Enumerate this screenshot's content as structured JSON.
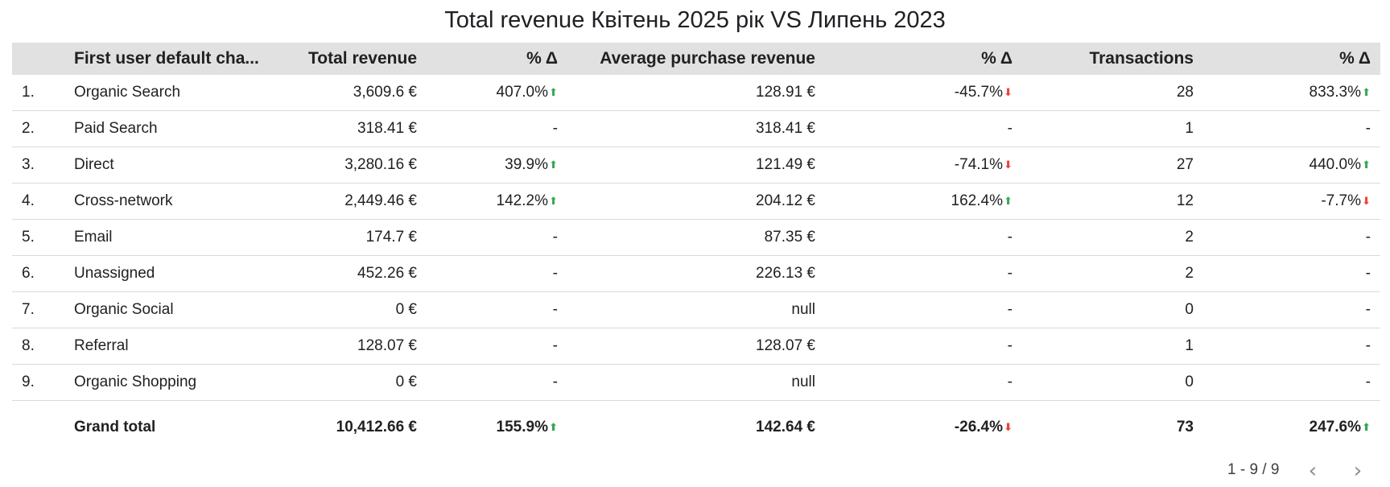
{
  "title": "Total revenue Квітень 2025 рік VS Липень 2023",
  "columns": {
    "index": "",
    "channel": "First user default cha...",
    "total_revenue": "Total revenue",
    "delta1": "% Δ",
    "avg_purchase": "Average purchase revenue",
    "delta2": "% Δ",
    "transactions": "Transactions",
    "delta3": "% Δ"
  },
  "rows": [
    {
      "idx": "1.",
      "channel": "Organic Search",
      "total_revenue": "3,609.6 €",
      "delta1": "407.0%",
      "delta1_dir": "up",
      "avg_purchase": "128.91 €",
      "delta2": "-45.7%",
      "delta2_dir": "down",
      "transactions": "28",
      "delta3": "833.3%",
      "delta3_dir": "up"
    },
    {
      "idx": "2.",
      "channel": "Paid Search",
      "total_revenue": "318.41 €",
      "delta1": "-",
      "delta1_dir": "",
      "avg_purchase": "318.41 €",
      "delta2": "-",
      "delta2_dir": "",
      "transactions": "1",
      "delta3": "-",
      "delta3_dir": ""
    },
    {
      "idx": "3.",
      "channel": "Direct",
      "total_revenue": "3,280.16 €",
      "delta1": "39.9%",
      "delta1_dir": "up",
      "avg_purchase": "121.49 €",
      "delta2": "-74.1%",
      "delta2_dir": "down",
      "transactions": "27",
      "delta3": "440.0%",
      "delta3_dir": "up"
    },
    {
      "idx": "4.",
      "channel": "Cross-network",
      "total_revenue": "2,449.46 €",
      "delta1": "142.2%",
      "delta1_dir": "up",
      "avg_purchase": "204.12 €",
      "delta2": "162.4%",
      "delta2_dir": "up",
      "transactions": "12",
      "delta3": "-7.7%",
      "delta3_dir": "down"
    },
    {
      "idx": "5.",
      "channel": "Email",
      "total_revenue": "174.7 €",
      "delta1": "-",
      "delta1_dir": "",
      "avg_purchase": "87.35 €",
      "delta2": "-",
      "delta2_dir": "",
      "transactions": "2",
      "delta3": "-",
      "delta3_dir": ""
    },
    {
      "idx": "6.",
      "channel": "Unassigned",
      "total_revenue": "452.26 €",
      "delta1": "-",
      "delta1_dir": "",
      "avg_purchase": "226.13 €",
      "delta2": "-",
      "delta2_dir": "",
      "transactions": "2",
      "delta3": "-",
      "delta3_dir": ""
    },
    {
      "idx": "7.",
      "channel": "Organic Social",
      "total_revenue": "0 €",
      "delta1": "-",
      "delta1_dir": "",
      "avg_purchase": "null",
      "delta2": "-",
      "delta2_dir": "",
      "transactions": "0",
      "delta3": "-",
      "delta3_dir": ""
    },
    {
      "idx": "8.",
      "channel": "Referral",
      "total_revenue": "128.07 €",
      "delta1": "-",
      "delta1_dir": "",
      "avg_purchase": "128.07 €",
      "delta2": "-",
      "delta2_dir": "",
      "transactions": "1",
      "delta3": "-",
      "delta3_dir": ""
    },
    {
      "idx": "9.",
      "channel": "Organic Shopping",
      "total_revenue": "0 €",
      "delta1": "-",
      "delta1_dir": "",
      "avg_purchase": "null",
      "delta2": "-",
      "delta2_dir": "",
      "transactions": "0",
      "delta3": "-",
      "delta3_dir": ""
    }
  ],
  "grand_total": {
    "label": "Grand total",
    "total_revenue": "10,412.66 €",
    "delta1": "155.9%",
    "delta1_dir": "up",
    "avg_purchase": "142.64 €",
    "delta2": "-26.4%",
    "delta2_dir": "down",
    "transactions": "73",
    "delta3": "247.6%",
    "delta3_dir": "up"
  },
  "pagination": {
    "range": "1 - 9 / 9",
    "prev_icon": "chevron-left-icon",
    "next_icon": "chevron-right-icon"
  },
  "colors": {
    "header_bg": "#e1e1e1",
    "up": "#34a853",
    "down": "#ea4335"
  }
}
